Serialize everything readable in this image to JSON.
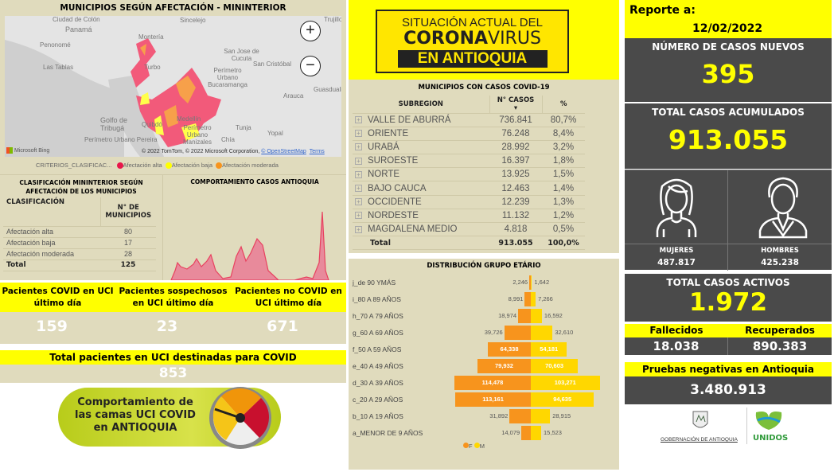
{
  "map": {
    "title": "MUNICIPIOS SEGÚN AFECTACIÓN - MININTERIOR",
    "places": [
      "Ciudad de Colón",
      "Panamá",
      "Penonomé",
      "Las Tablas",
      "Montería",
      "Sincelejo",
      "Turbo",
      "San Jose de Cucuta",
      "Perímetro Urbano Bucaramanga",
      "San Cristóbal",
      "Arauca",
      "Guasdualito",
      "Trujillo",
      "Golfo de Tribugá",
      "Quibdó",
      "Medellín",
      "Perímetro Urbano Manizales",
      "Tunja",
      "Yopal",
      "Chía",
      "Perímetro Urbano Pereira"
    ],
    "bing": "Microsoft Bing",
    "copyright": "© 2022 TomTom, © 2022 Microsoft Corporation,",
    "osm": "© OpenStreetMap",
    "terms": "Terms",
    "zoom_in": "+",
    "zoom_out": "−",
    "legend": {
      "title": "CRITERIOS_CLASIFICAC...",
      "items": [
        {
          "label": "Afectación alta",
          "color": "#e8174a"
        },
        {
          "label": "Afectación baja",
          "color": "#ffff00"
        },
        {
          "label": "Afectación moderada",
          "color": "#f7941d"
        }
      ]
    }
  },
  "classification": {
    "title": "CLASIFICACIÓN MININTERIOR SEGÚN AFECTACIÓN DE LOS MUNICIPIOS",
    "col1": "CLASIFICACIÓN",
    "col2": "N° DE MUNICIPIOS",
    "rows": [
      {
        "label": "Afectación alta",
        "value": "80"
      },
      {
        "label": "Afectación baja",
        "value": "17"
      },
      {
        "label": "Afectación moderada",
        "value": "28"
      }
    ],
    "total_label": "Total",
    "total": "125"
  },
  "trend": {
    "title": "COMPORTAMIENTO CASOS ANTIOQUIA",
    "color": "#e8415f"
  },
  "uci": {
    "items": [
      {
        "label": "Pacientes COVID en UCI último día",
        "value": "159"
      },
      {
        "label": "Pacientes sospechosos en UCI último día",
        "value": "23"
      },
      {
        "label": "Pacientes no COVID en UCI último día",
        "value": "671"
      }
    ],
    "total_label": "Total pacientes en UCI destinadas para COVID",
    "total": "853",
    "banner": "Comportamiento de las camas UCI COVID en ANTIOQUIA"
  },
  "header": {
    "line1": "SITUACIÓN ACTUAL DEL",
    "line2a": "CORONA",
    "line2b": "VIRUS",
    "line3": "EN ANTIOQUIA"
  },
  "subregions": {
    "title": "MUNICIPIOS CON CASOS COVID-19",
    "col1": "SUBREGION",
    "col2": "N° CASOS",
    "col3": "%",
    "rows": [
      [
        "VALLE DE ABURRÁ",
        "736.841",
        "80,7%"
      ],
      [
        "ORIENTE",
        "76.248",
        "8,4%"
      ],
      [
        "URABÁ",
        "28.992",
        "3,2%"
      ],
      [
        "SUROESTE",
        "16.397",
        "1,8%"
      ],
      [
        "NORTE",
        "13.925",
        "1,5%"
      ],
      [
        "BAJO CAUCA",
        "12.463",
        "1,4%"
      ],
      [
        "OCCIDENTE",
        "12.239",
        "1,3%"
      ],
      [
        "NORDESTE",
        "11.132",
        "1,2%"
      ],
      [
        "MAGDALENA MEDIO",
        "4.818",
        "0,5%"
      ]
    ],
    "total": [
      "Total",
      "913.055",
      "100,0%"
    ]
  },
  "chart_data": {
    "type": "bar",
    "title": "DISTRIBUCIÓN GRUPO ETÁRIO",
    "orientation": "population-pyramid",
    "categories": [
      "j_de 90 YMÁS",
      "i_80 A 89 AÑOS",
      "h_70 A 79 AÑOS",
      "g_60 A 69 AÑOS",
      "f_50 A 59 AÑOS",
      "e_40 A 49 AÑOS",
      "d_30 A 39 AÑOS",
      "c_20 A 29 AÑOS",
      "b_10 A 19 AÑOS",
      "a_MENOR DE 9 AÑOS"
    ],
    "series": [
      {
        "name": "F",
        "color": "#f7941d",
        "values": [
          2246,
          8991,
          18974,
          39726,
          64338,
          79932,
          114478,
          113161,
          31892,
          14079
        ],
        "labels": [
          "2,246",
          "8,991",
          "18,974",
          "39,726",
          "64,338",
          "79,932",
          "114,478",
          "113,161",
          "31,892",
          "14,079"
        ]
      },
      {
        "name": "M",
        "color": "#ffd700",
        "values": [
          1642,
          7266,
          16592,
          32610,
          54181,
          70603,
          103271,
          94635,
          28915,
          15523
        ],
        "labels": [
          "1,642",
          "7,266",
          "16,592",
          "32,610",
          "54,181",
          "70,603",
          "103,271",
          "94,635",
          "28,915",
          "15,523"
        ]
      }
    ],
    "legend": "bottom"
  },
  "report": {
    "label": "Reporte a:",
    "date": "12/02/2022",
    "new_label": "NÚMERO DE CASOS NUEVOS",
    "new": "395",
    "total_label": "TOTAL CASOS ACUMULADOS",
    "total": "913.055",
    "women_label": "MUJERES",
    "women": "487.817",
    "men_label": "HOMBRES",
    "men": "425.238",
    "active_label": "TOTAL CASOS ACTIVOS",
    "active": "1.972",
    "deaths_label": "Fallecidos",
    "deaths": "18.038",
    "recovered_label": "Recuperados",
    "recovered": "890.383",
    "neg_label": "Pruebas negativas en Antioquia",
    "neg": "3.480.913",
    "gov": "GOBERNACIÓN DE ANTIOQUIA",
    "unidos": "UNIDOS"
  }
}
